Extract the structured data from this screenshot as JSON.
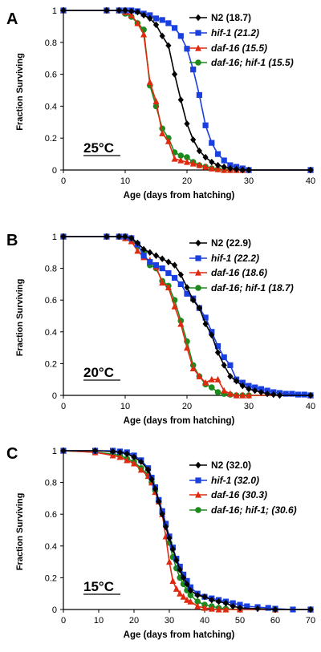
{
  "chart_data": [
    {
      "type": "line",
      "panel_label": "A",
      "temperature": "25°C",
      "xlabel": "Age (days from hatching)",
      "ylabel": "Fraction Surviving",
      "xlim": [
        0,
        40
      ],
      "ylim": [
        0,
        1
      ],
      "xticks": [
        0,
        10,
        20,
        30,
        40
      ],
      "yticks": [
        0,
        0.2,
        0.4,
        0.6,
        0.8,
        1
      ],
      "legend_position": "top-right",
      "series": [
        {
          "name": "N2 (18.7)",
          "italic": false,
          "color": "#000000",
          "marker": "diamond",
          "x": [
            0,
            7,
            9,
            10,
            11,
            12,
            13,
            14,
            15,
            16,
            17,
            18,
            19,
            20,
            21,
            22,
            23,
            24,
            25,
            26,
            27,
            28,
            29,
            30,
            40
          ],
          "y": [
            1,
            1,
            1,
            1,
            0.995,
            0.99,
            0.97,
            0.95,
            0.91,
            0.84,
            0.78,
            0.6,
            0.44,
            0.29,
            0.19,
            0.12,
            0.08,
            0.05,
            0.03,
            0.02,
            0.01,
            0.005,
            0,
            0,
            0
          ]
        },
        {
          "name": "hif-1 (21.2)",
          "italic": true,
          "color": "#1a3fe0",
          "marker": "square",
          "x": [
            0,
            7,
            9,
            10,
            11,
            12,
            13,
            14,
            15,
            16,
            17,
            18,
            19,
            20,
            21,
            22,
            23,
            24,
            25,
            26,
            27,
            28,
            29,
            30,
            40
          ],
          "y": [
            1,
            1,
            1,
            1,
            1,
            0.995,
            0.98,
            0.97,
            0.95,
            0.94,
            0.92,
            0.89,
            0.84,
            0.76,
            0.63,
            0.47,
            0.28,
            0.17,
            0.1,
            0.06,
            0.03,
            0.02,
            0.01,
            0,
            0
          ]
        },
        {
          "name": "daf-16 (15.5)",
          "italic": true,
          "color": "#e02a10",
          "marker": "triangle",
          "x": [
            0,
            7,
            9,
            10,
            11,
            12,
            13,
            14,
            15,
            16,
            17,
            18,
            19,
            20,
            21,
            22,
            23,
            24,
            25,
            26,
            27,
            28,
            29,
            30,
            40
          ],
          "y": [
            1,
            1,
            1,
            0.99,
            0.97,
            0.92,
            0.85,
            0.55,
            0.43,
            0.23,
            0.18,
            0.07,
            0.06,
            0.05,
            0.04,
            0.03,
            0.02,
            0.01,
            0.005,
            0,
            0,
            0,
            0,
            0,
            0
          ]
        },
        {
          "name": "daf-16; hif-1 (15.5)",
          "italic": true,
          "color": "#1e8a1e",
          "marker": "circle",
          "x": [
            0,
            7,
            9,
            10,
            11,
            12,
            13,
            14,
            15,
            16,
            17,
            18,
            19,
            20,
            21,
            22,
            23,
            24,
            25,
            26,
            27,
            28,
            29,
            30,
            40
          ],
          "y": [
            1,
            1,
            1,
            0.98,
            0.96,
            0.92,
            0.88,
            0.53,
            0.4,
            0.26,
            0.2,
            0.11,
            0.09,
            0.08,
            0.05,
            0.03,
            0.02,
            0.01,
            0.005,
            0,
            0,
            0,
            0,
            0,
            0
          ]
        }
      ]
    },
    {
      "type": "line",
      "panel_label": "B",
      "temperature": "20°C",
      "xlabel": "Age (days from hatching)",
      "ylabel": "Fraction Surviving",
      "xlim": [
        0,
        40
      ],
      "ylim": [
        0,
        1
      ],
      "xticks": [
        0,
        10,
        20,
        30,
        40
      ],
      "yticks": [
        0,
        0.2,
        0.4,
        0.6,
        0.8,
        1
      ],
      "legend_position": "top-right",
      "series": [
        {
          "name": "N2 (22.9)",
          "italic": false,
          "color": "#000000",
          "marker": "diamond",
          "x": [
            0,
            7,
            9,
            10,
            11,
            12,
            13,
            14,
            15,
            16,
            17,
            18,
            19,
            20,
            21,
            22,
            23,
            24,
            25,
            26,
            27,
            28,
            29,
            30,
            31,
            32,
            33,
            34,
            35,
            40
          ],
          "y": [
            1,
            1,
            1,
            1,
            0.99,
            0.96,
            0.92,
            0.9,
            0.88,
            0.86,
            0.84,
            0.82,
            0.76,
            0.68,
            0.6,
            0.55,
            0.45,
            0.38,
            0.27,
            0.19,
            0.12,
            0.09,
            0.06,
            0.04,
            0.03,
            0.02,
            0.01,
            0.005,
            0,
            0
          ]
        },
        {
          "name": "hif-1 (22.2)",
          "italic": true,
          "color": "#1a3fe0",
          "marker": "square",
          "x": [
            0,
            7,
            9,
            10,
            11,
            12,
            13,
            14,
            15,
            16,
            17,
            18,
            19,
            20,
            21,
            22,
            23,
            24,
            25,
            26,
            27,
            28,
            29,
            30,
            31,
            32,
            33,
            34,
            35,
            36,
            37,
            38,
            39,
            40
          ],
          "y": [
            1,
            1,
            1,
            1,
            0.99,
            0.95,
            0.88,
            0.84,
            0.82,
            0.8,
            0.77,
            0.74,
            0.7,
            0.64,
            0.61,
            0.55,
            0.49,
            0.4,
            0.31,
            0.24,
            0.19,
            0.1,
            0.08,
            0.06,
            0.05,
            0.04,
            0.03,
            0.02,
            0.015,
            0.01,
            0.01,
            0.005,
            0.005,
            0
          ]
        },
        {
          "name": "daf-16 (18.6)",
          "italic": true,
          "color": "#e02a10",
          "marker": "triangle",
          "x": [
            0,
            7,
            9,
            10,
            11,
            12,
            13,
            14,
            15,
            16,
            17,
            18,
            19,
            20,
            21,
            22,
            23,
            24,
            25,
            26,
            27,
            28,
            29,
            30,
            40
          ],
          "y": [
            1,
            1,
            1,
            0.99,
            0.97,
            0.91,
            0.87,
            0.85,
            0.81,
            0.71,
            0.68,
            0.56,
            0.45,
            0.3,
            0.17,
            0.12,
            0.08,
            0.1,
            0.1,
            0.03,
            0.01,
            0,
            0,
            0,
            0
          ]
        },
        {
          "name": "daf-16; hif-1 (18.7)",
          "italic": true,
          "color": "#1e8a1e",
          "marker": "circle",
          "x": [
            0,
            7,
            9,
            10,
            11,
            12,
            13,
            14,
            15,
            16,
            17,
            18,
            19,
            20,
            21,
            22,
            23,
            24,
            25,
            26,
            27,
            28,
            29,
            30,
            40
          ],
          "y": [
            1,
            1,
            1,
            0.99,
            0.98,
            0.94,
            0.9,
            0.82,
            0.8,
            0.72,
            0.69,
            0.6,
            0.47,
            0.34,
            0.19,
            0.12,
            0.07,
            0.05,
            0.02,
            0.01,
            0.005,
            0,
            0,
            0,
            0
          ]
        }
      ]
    },
    {
      "type": "line",
      "panel_label": "C",
      "temperature": "15°C",
      "xlabel": "Age (days from hatching)",
      "ylabel": "Fraction Surviving",
      "xlim": [
        0,
        70
      ],
      "ylim": [
        0,
        1
      ],
      "xticks": [
        0,
        10,
        20,
        30,
        40,
        50,
        60,
        70
      ],
      "yticks": [
        0,
        0.2,
        0.4,
        0.6,
        0.8,
        1
      ],
      "legend_position": "top-right",
      "series": [
        {
          "name": "N2 (32.0)",
          "italic": false,
          "color": "#000000",
          "marker": "diamond",
          "x": [
            0,
            9,
            14,
            16,
            18,
            20,
            22,
            24,
            25,
            26,
            27,
            28,
            29,
            30,
            31,
            32,
            33,
            34,
            35,
            36,
            38,
            40,
            42,
            44,
            46,
            48,
            50,
            55,
            60,
            70
          ],
          "y": [
            1,
            1,
            0.995,
            0.99,
            0.98,
            0.96,
            0.93,
            0.88,
            0.82,
            0.76,
            0.68,
            0.6,
            0.52,
            0.45,
            0.38,
            0.31,
            0.25,
            0.2,
            0.16,
            0.12,
            0.09,
            0.08,
            0.06,
            0.05,
            0.04,
            0.02,
            0.01,
            0.005,
            0,
            0
          ]
        },
        {
          "name": "hif-1 (32.0)",
          "italic": true,
          "color": "#1a3fe0",
          "marker": "square",
          "x": [
            0,
            9,
            14,
            16,
            18,
            20,
            22,
            24,
            25,
            26,
            27,
            28,
            29,
            30,
            31,
            32,
            33,
            34,
            35,
            36,
            38,
            40,
            42,
            44,
            46,
            48,
            50,
            52,
            55,
            58,
            60,
            65,
            70
          ],
          "y": [
            1,
            1,
            1,
            0.995,
            0.99,
            0.97,
            0.94,
            0.89,
            0.83,
            0.77,
            0.69,
            0.62,
            0.54,
            0.46,
            0.39,
            0.32,
            0.27,
            0.22,
            0.18,
            0.14,
            0.1,
            0.08,
            0.07,
            0.06,
            0.05,
            0.04,
            0.03,
            0.02,
            0.015,
            0.01,
            0.005,
            0,
            0
          ]
        },
        {
          "name": "daf-16 (30.3)",
          "italic": true,
          "color": "#e02a10",
          "marker": "triangle",
          "x": [
            0,
            9,
            14,
            16,
            18,
            20,
            22,
            24,
            25,
            26,
            27,
            28,
            29,
            30,
            31,
            32,
            33,
            34,
            35,
            36,
            38,
            40,
            42,
            44,
            46,
            50,
            60,
            70
          ],
          "y": [
            1,
            0.99,
            0.97,
            0.96,
            0.94,
            0.92,
            0.88,
            0.84,
            0.8,
            0.74,
            0.68,
            0.6,
            0.46,
            0.3,
            0.18,
            0.13,
            0.1,
            0.08,
            0.06,
            0.05,
            0.02,
            0.01,
            0.005,
            0,
            0,
            0,
            0,
            0
          ]
        },
        {
          "name": "daf-16; hif-1; (30.6)",
          "italic": true,
          "color": "#1e8a1e",
          "marker": "circle",
          "x": [
            0,
            9,
            14,
            16,
            18,
            20,
            22,
            24,
            25,
            26,
            27,
            28,
            29,
            30,
            31,
            32,
            33,
            34,
            35,
            36,
            38,
            40,
            42,
            44,
            46,
            50,
            60,
            70
          ],
          "y": [
            1,
            0.99,
            0.98,
            0.97,
            0.95,
            0.93,
            0.89,
            0.85,
            0.8,
            0.75,
            0.68,
            0.61,
            0.53,
            0.42,
            0.33,
            0.26,
            0.2,
            0.16,
            0.12,
            0.09,
            0.05,
            0.03,
            0.02,
            0.01,
            0.005,
            0,
            0,
            0
          ]
        }
      ]
    }
  ]
}
